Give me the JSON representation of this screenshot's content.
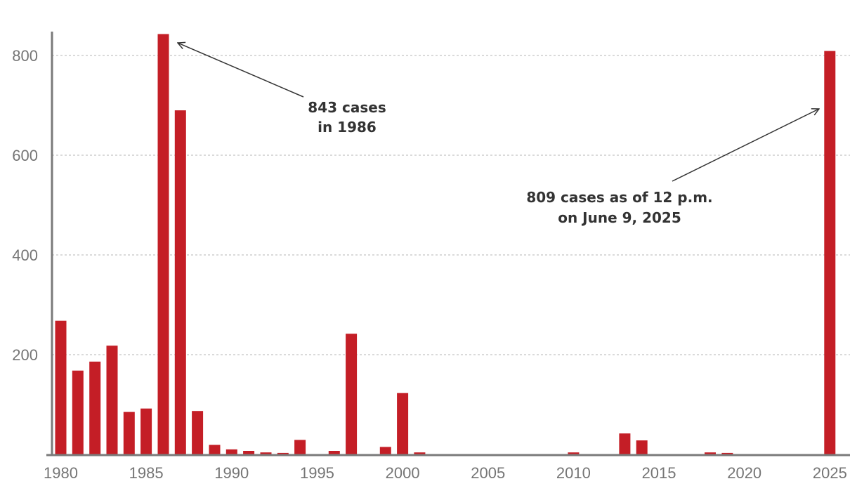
{
  "chart_data": {
    "type": "bar",
    "x": [
      1980,
      1981,
      1982,
      1983,
      1984,
      1985,
      1986,
      1987,
      1988,
      1989,
      1990,
      1991,
      1992,
      1993,
      1994,
      1995,
      1996,
      1997,
      1998,
      1999,
      2000,
      2001,
      2002,
      2003,
      2004,
      2005,
      2006,
      2007,
      2008,
      2009,
      2010,
      2011,
      2012,
      2013,
      2014,
      2015,
      2016,
      2017,
      2018,
      2019,
      2020,
      2021,
      2022,
      2023,
      2024,
      2025
    ],
    "values": [
      268,
      168,
      186,
      218,
      85,
      92,
      843,
      690,
      87,
      19,
      10,
      7,
      4,
      3,
      29,
      0,
      7,
      242,
      0,
      15,
      123,
      4,
      0,
      0,
      0,
      0,
      0,
      0,
      0,
      0,
      4,
      0,
      0,
      42,
      28,
      0,
      0,
      0,
      4,
      3,
      0,
      0,
      0,
      0,
      0,
      809
    ],
    "ylim": [
      0,
      850
    ],
    "yticks": [
      200,
      400,
      600,
      800
    ],
    "xticks": [
      1980,
      1985,
      1990,
      1995,
      2000,
      2005,
      2010,
      2015,
      2020,
      2025
    ],
    "grid": true,
    "bar_color": "#c41e26",
    "annotations": [
      {
        "lines": [
          "843 cases",
          "in 1986"
        ],
        "target_year": 1986,
        "target_value": 843
      },
      {
        "lines": [
          "809 cases as of 12 p.m.",
          "on June 9, 2025"
        ],
        "target_year": 2025,
        "target_value": 809
      }
    ]
  }
}
